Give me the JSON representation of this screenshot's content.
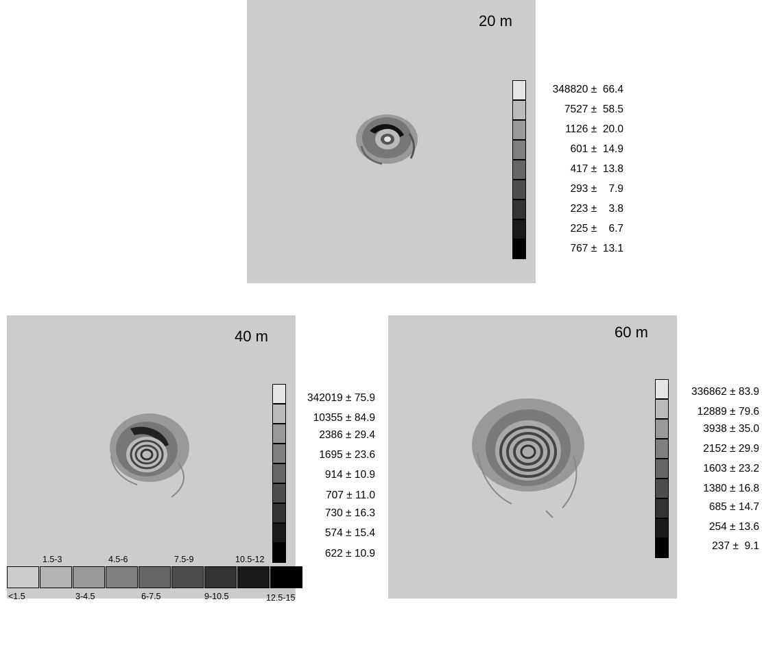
{
  "panels": [
    {
      "id": "20m",
      "title": "20 m",
      "legend": [
        {
          "label": "348820 ±  66.4",
          "color": "#e6e6e6"
        },
        {
          "label": "7527 ±  58.5",
          "color": "#bbbbbb"
        },
        {
          "label": "1126 ±  20.0",
          "color": "#999999"
        },
        {
          "label": "601 ±  14.9",
          "color": "#7f7f7f"
        },
        {
          "label": "417 ±  13.8",
          "color": "#666666"
        },
        {
          "label": "293 ±    7.9",
          "color": "#4d4d4d"
        },
        {
          "label": "223 ±    3.8",
          "color": "#333333"
        },
        {
          "label": "225 ±    6.7",
          "color": "#1a1a1a"
        },
        {
          "label": "767 ±  13.1",
          "color": "#000000"
        }
      ]
    },
    {
      "id": "40m",
      "title": "40 m",
      "legend": [
        {
          "label": "342019 ± 75.9",
          "color": "#e6e6e6"
        },
        {
          "label": "10355 ± 84.9",
          "color": "#bbbbbb"
        },
        {
          "label": "2386 ± 29.4",
          "color": "#999999"
        },
        {
          "label": "1695 ± 23.6",
          "color": "#7f7f7f"
        },
        {
          "label": "914 ± 10.9",
          "color": "#666666"
        },
        {
          "label": "707 ± 11.0",
          "color": "#4d4d4d"
        },
        {
          "label": "730 ± 16.3",
          "color": "#333333"
        },
        {
          "label": "574 ± 15.4",
          "color": "#1a1a1a"
        },
        {
          "label": "622 ± 10.9",
          "color": "#000000"
        }
      ]
    },
    {
      "id": "60m",
      "title": "60 m",
      "legend": [
        {
          "label": "336862 ± 83.9",
          "color": "#e6e6e6"
        },
        {
          "label": "12889 ± 79.6",
          "color": "#bbbbbb"
        },
        {
          "label": "3938 ± 35.0",
          "color": "#999999"
        },
        {
          "label": "2152 ± 29.9",
          "color": "#7f7f7f"
        },
        {
          "label": "1603 ± 23.2",
          "color": "#666666"
        },
        {
          "label": "1380 ± 16.8",
          "color": "#4d4d4d"
        },
        {
          "label": "685 ± 14.7",
          "color": "#333333"
        },
        {
          "label": "254 ± 13.6",
          "color": "#1a1a1a"
        },
        {
          "label": "237 ±  9.1",
          "color": "#000000"
        }
      ]
    }
  ],
  "class_legend": {
    "boxes": [
      {
        "label": "<1.5",
        "color": "#cccccc"
      },
      {
        "label": "1.5-3",
        "color": "#b3b3b3"
      },
      {
        "label": "3-4.5",
        "color": "#999999"
      },
      {
        "label": "4.5-6",
        "color": "#808080"
      },
      {
        "label": "6-7.5",
        "color": "#666666"
      },
      {
        "label": "7.5-9",
        "color": "#4d4d4d"
      },
      {
        "label": "9-10.5",
        "color": "#333333"
      },
      {
        "label": "10.5-12",
        "color": "#1a1a1a"
      },
      {
        "label": "12.5-15",
        "color": "#000000"
      }
    ]
  }
}
